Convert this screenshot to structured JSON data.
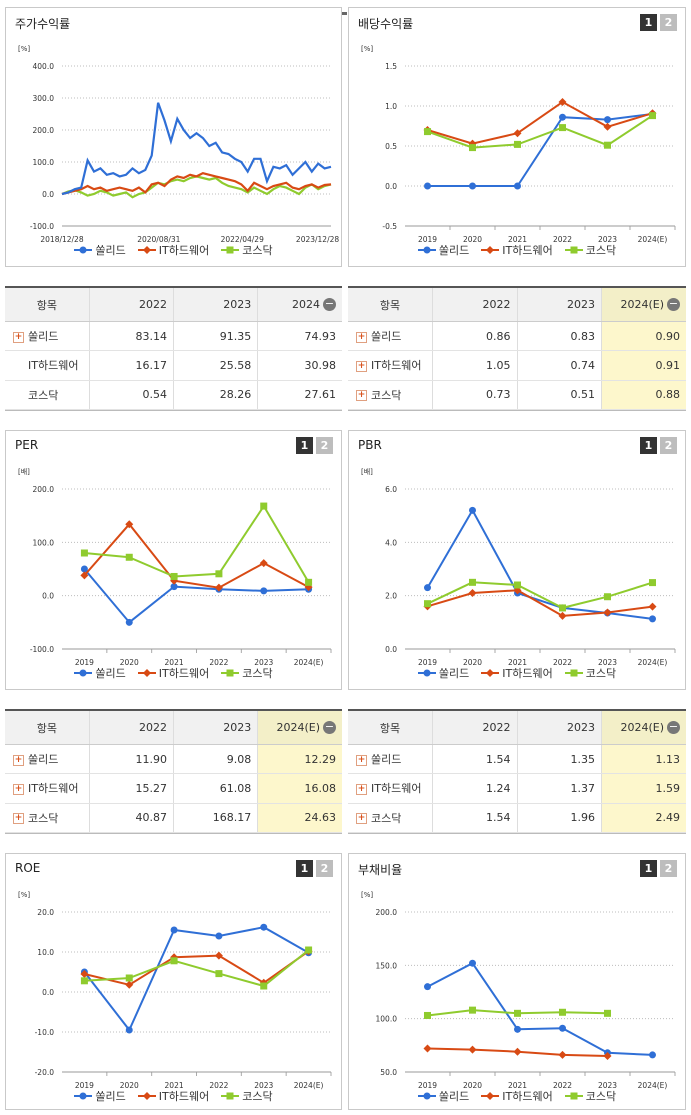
{
  "colors": {
    "solid": "#2f6fd6",
    "it": "#d84a14",
    "kosdaq": "#8fcb2e"
  },
  "legend": [
    "쏠리드",
    "IT하드웨어",
    "코스닥"
  ],
  "badge": {
    "one": "1",
    "two": "2"
  },
  "panels": {
    "p1": {
      "title": "주가수익률",
      "unit": "[%]"
    },
    "p2": {
      "title": "배당수익률",
      "unit": "[%]"
    },
    "p3": {
      "title": "PER",
      "unit": "[배]"
    },
    "p4": {
      "title": "PBR",
      "unit": "[배]"
    },
    "p5": {
      "title": "ROE",
      "unit": "[%]"
    },
    "p6": {
      "title": "부채비율",
      "unit": "[%]"
    }
  },
  "tables": {
    "t1": {
      "headers": [
        "항목",
        "2022",
        "2023",
        "2024"
      ],
      "rows": [
        {
          "name": "쏠리드",
          "v": [
            "83.14",
            "91.35",
            "74.93"
          ]
        },
        {
          "name": "IT하드웨어",
          "v": [
            "16.17",
            "25.58",
            "30.98"
          ]
        },
        {
          "name": "코스닥",
          "v": [
            "0.54",
            "28.26",
            "27.61"
          ]
        }
      ]
    },
    "t2": {
      "headers": [
        "항목",
        "2022",
        "2023",
        "2024(E)"
      ],
      "rows": [
        {
          "name": "쏠리드",
          "v": [
            "0.86",
            "0.83",
            "0.90"
          ]
        },
        {
          "name": "IT하드웨어",
          "v": [
            "1.05",
            "0.74",
            "0.91"
          ]
        },
        {
          "name": "코스닥",
          "v": [
            "0.73",
            "0.51",
            "0.88"
          ]
        }
      ]
    },
    "t3": {
      "headers": [
        "항목",
        "2022",
        "2023",
        "2024(E)"
      ],
      "rows": [
        {
          "name": "쏠리드",
          "v": [
            "11.90",
            "9.08",
            "12.29"
          ]
        },
        {
          "name": "IT하드웨어",
          "v": [
            "15.27",
            "61.08",
            "16.08"
          ]
        },
        {
          "name": "코스닥",
          "v": [
            "40.87",
            "168.17",
            "24.63"
          ]
        }
      ]
    },
    "t4": {
      "headers": [
        "항목",
        "2022",
        "2023",
        "2024(E)"
      ],
      "rows": [
        {
          "name": "쏠리드",
          "v": [
            "1.54",
            "1.35",
            "1.13"
          ]
        },
        {
          "name": "IT하드웨어",
          "v": [
            "1.24",
            "1.37",
            "1.59"
          ]
        },
        {
          "name": "코스닥",
          "v": [
            "1.54",
            "1.96",
            "2.49"
          ]
        }
      ]
    }
  },
  "chart_data": [
    {
      "type": "line",
      "title": "주가수익률",
      "ylabel": "[%]",
      "ylim": [
        -100,
        400
      ],
      "yticks": [
        "400.0",
        "300.0",
        "200.0",
        "100.0",
        "0.0",
        "-100.0"
      ],
      "xticks": [
        "2018/12/28",
        "2020/08/31",
        "2022/04/29",
        "2023/12/28"
      ],
      "series": [
        {
          "name": "쏠리드",
          "values": [
            0,
            5,
            15,
            20,
            105,
            70,
            80,
            60,
            65,
            55,
            60,
            80,
            65,
            75,
            120,
            285,
            230,
            165,
            235,
            200,
            175,
            190,
            175,
            150,
            160,
            130,
            125,
            110,
            100,
            70,
            110,
            110,
            40,
            85,
            80,
            90,
            60,
            80,
            100,
            70,
            95,
            80,
            85
          ]
        },
        {
          "name": "IT하드웨어",
          "values": [
            0,
            5,
            10,
            15,
            25,
            15,
            20,
            10,
            15,
            20,
            15,
            10,
            20,
            5,
            30,
            35,
            25,
            45,
            55,
            50,
            60,
            55,
            65,
            60,
            55,
            50,
            45,
            40,
            30,
            10,
            35,
            25,
            15,
            25,
            30,
            35,
            20,
            15,
            25,
            30,
            20,
            28,
            30
          ]
        },
        {
          "name": "코스닥",
          "values": [
            0,
            8,
            12,
            5,
            -5,
            0,
            10,
            5,
            -5,
            0,
            5,
            -10,
            0,
            5,
            20,
            35,
            30,
            40,
            45,
            40,
            50,
            55,
            50,
            45,
            50,
            35,
            25,
            20,
            15,
            5,
            20,
            10,
            0,
            15,
            25,
            20,
            10,
            0,
            20,
            30,
            15,
            25,
            30
          ]
        }
      ]
    },
    {
      "type": "line",
      "title": "배당수익률",
      "ylabel": "[%]",
      "ylim": [
        -0.5,
        1.5
      ],
      "yticks": [
        "1.5",
        "1.0",
        "0.5",
        "0.0",
        "-0.5"
      ],
      "categories": [
        "2019",
        "2020",
        "2021",
        "2022",
        "2023",
        "2024(E)"
      ],
      "series": [
        {
          "name": "쏠리드",
          "values": [
            0,
            0,
            0,
            0.86,
            0.83,
            0.9
          ]
        },
        {
          "name": "IT하드웨어",
          "values": [
            0.7,
            0.53,
            0.66,
            1.05,
            0.74,
            0.91
          ]
        },
        {
          "name": "코스닥",
          "values": [
            0.68,
            0.48,
            0.52,
            0.73,
            0.51,
            0.88
          ]
        }
      ]
    },
    {
      "type": "line",
      "title": "PER",
      "ylabel": "[배]",
      "ylim": [
        -100,
        200
      ],
      "yticks": [
        "200.0",
        "100.0",
        "0.0",
        "-100.0"
      ],
      "categories": [
        "2019",
        "2020",
        "2021",
        "2022",
        "2023",
        "2024(E)"
      ],
      "series": [
        {
          "name": "쏠리드",
          "values": [
            50,
            -50,
            17,
            12,
            9,
            12
          ]
        },
        {
          "name": "IT하드웨어",
          "values": [
            38,
            134,
            28,
            15,
            61,
            16
          ]
        },
        {
          "name": "코스닥",
          "values": [
            80,
            72,
            36,
            41,
            168,
            25
          ]
        }
      ]
    },
    {
      "type": "line",
      "title": "PBR",
      "ylabel": "[배]",
      "ylim": [
        0,
        6
      ],
      "yticks": [
        "6.0",
        "4.0",
        "2.0",
        "0.0"
      ],
      "categories": [
        "2019",
        "2020",
        "2021",
        "2022",
        "2023",
        "2024(E)"
      ],
      "series": [
        {
          "name": "쏠리드",
          "values": [
            2.3,
            5.2,
            2.1,
            1.54,
            1.35,
            1.13
          ]
        },
        {
          "name": "IT하드웨어",
          "values": [
            1.6,
            2.1,
            2.2,
            1.24,
            1.37,
            1.59
          ]
        },
        {
          "name": "코스닥",
          "values": [
            1.7,
            2.5,
            2.4,
            1.54,
            1.96,
            2.49
          ]
        }
      ]
    },
    {
      "type": "line",
      "title": "ROE",
      "ylabel": "[%]",
      "ylim": [
        -20,
        20
      ],
      "yticks": [
        "20.0",
        "10.0",
        "0.0",
        "-10.0",
        "-20.0"
      ],
      "categories": [
        "2019",
        "2020",
        "2021",
        "2022",
        "2023",
        "2024(E)"
      ],
      "series": [
        {
          "name": "쏠리드",
          "values": [
            5,
            -9.5,
            15.5,
            14,
            16.2,
            9.8
          ]
        },
        {
          "name": "IT하드웨어",
          "values": [
            4.5,
            1.8,
            8.7,
            9.1,
            2.3,
            10.2
          ]
        },
        {
          "name": "코스닥",
          "values": [
            2.8,
            3.5,
            7.8,
            4.6,
            1.5,
            10.5
          ]
        }
      ]
    },
    {
      "type": "line",
      "title": "부채비율",
      "ylabel": "[%]",
      "ylim": [
        50,
        200
      ],
      "yticks": [
        "200.0",
        "150.0",
        "100.0",
        "50.0"
      ],
      "categories": [
        "2019",
        "2020",
        "2021",
        "2022",
        "2023",
        "2024(E)"
      ],
      "series": [
        {
          "name": "쏠리드",
          "values": [
            130,
            152,
            90,
            91,
            68,
            66
          ]
        },
        {
          "name": "IT하드웨어",
          "values": [
            72,
            71,
            69,
            66,
            65,
            null
          ]
        },
        {
          "name": "코스닥",
          "values": [
            103,
            108,
            105,
            106,
            105,
            null
          ]
        }
      ]
    }
  ]
}
